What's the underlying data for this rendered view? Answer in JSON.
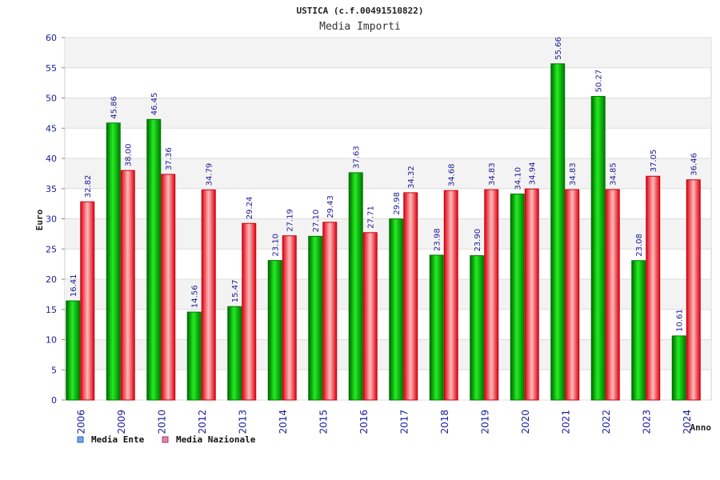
{
  "chart_data": {
    "type": "bar",
    "title": "USTICA (c.f.00491510822)",
    "subtitle": "Media Importi",
    "ylabel": "Euro",
    "xlabel": "Anno",
    "ylim": [
      0,
      60
    ],
    "ytick_step": 5,
    "categories": [
      "2006",
      "2009",
      "2010",
      "2012",
      "2013",
      "2014",
      "2015",
      "2016",
      "2017",
      "2018",
      "2019",
      "2020",
      "2021",
      "2022",
      "2023",
      "2024"
    ],
    "series": [
      {
        "name": "Media Ente",
        "color": "#00bb00",
        "legend_color": "#66aaee",
        "values": [
          16.41,
          45.86,
          46.45,
          14.56,
          15.47,
          23.1,
          27.1,
          37.63,
          29.98,
          23.98,
          23.9,
          34.1,
          55.66,
          50.27,
          23.08,
          10.61
        ]
      },
      {
        "name": "Media Nazionale",
        "color": "#ee2233",
        "legend_color": "#dd88aa",
        "values": [
          32.82,
          38.0,
          37.36,
          34.79,
          29.24,
          27.19,
          29.43,
          27.71,
          34.32,
          34.68,
          34.83,
          34.94,
          34.83,
          34.85,
          37.05,
          36.46
        ]
      }
    ],
    "grid": true,
    "legend_position": "bottom-left"
  }
}
